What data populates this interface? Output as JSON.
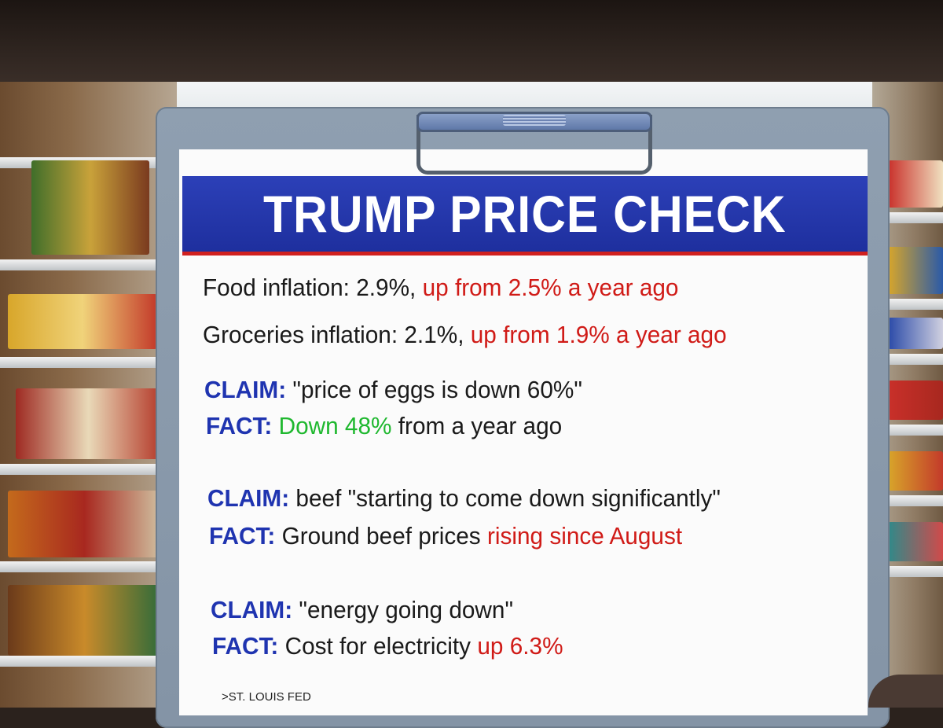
{
  "title": "TRUMP PRICE CHECK",
  "lines": [
    {
      "plain": "Food inflation: 2.9%, ",
      "highlight": "up from 2.5% a year ago"
    },
    {
      "plain": "Groceries inflation: 2.1%, ",
      "highlight": "up from 1.9% a year ago"
    }
  ],
  "claims": [
    {
      "claim_label": "CLAIM:",
      "claim_text": " \"price of eggs is down 60%\"",
      "fact_label": "FACT:",
      "fact_highlight": " Down 48%",
      "fact_text": " from a year ago"
    },
    {
      "claim_label": "CLAIM:",
      "claim_text": " beef \"starting to come down significantly\"",
      "fact_label": "FACT:",
      "fact_text": " Ground beef prices ",
      "fact_highlight": "rising since August"
    },
    {
      "claim_label": "CLAIM:",
      "claim_text": " \"energy going down\"",
      "fact_label": "FACT:",
      "fact_text": " Cost for electricity ",
      "fact_highlight": "up 6.3%"
    }
  ],
  "source": ">ST. LOUIS FED",
  "colors": {
    "banner_blue": "#1e2f9e",
    "highlight_red": "#d01b17",
    "highlight_green": "#1fb82f",
    "label_blue": "#1f34b0"
  }
}
